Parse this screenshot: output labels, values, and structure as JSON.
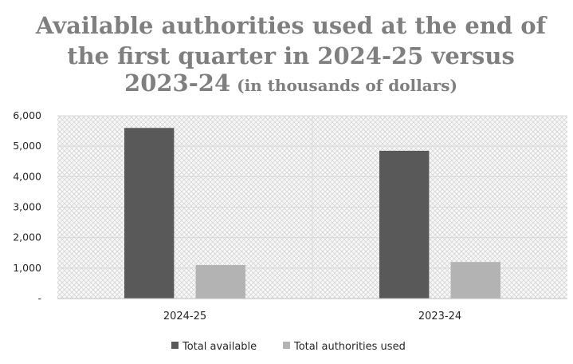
{
  "chart_data": {
    "type": "bar",
    "title_lines": [
      "Available authorities used at the end of",
      "the first quarter in 2024-25 versus",
      "2023-24"
    ],
    "title_suffix": "(in thousands of dollars)",
    "categories": [
      "2024-25",
      "2023-24"
    ],
    "series": [
      {
        "name": "Total available",
        "values": [
          5600,
          4850
        ],
        "color": "#595959"
      },
      {
        "name": "Total authorities used",
        "values": [
          1100,
          1200
        ],
        "color": "#b3b3b3"
      }
    ],
    "y_ticks": [
      {
        "value": 0,
        "label": "-"
      },
      {
        "value": 1000,
        "label": "1,000"
      },
      {
        "value": 2000,
        "label": "2,000"
      },
      {
        "value": 3000,
        "label": "3,000"
      },
      {
        "value": 4000,
        "label": "4,000"
      },
      {
        "value": 5000,
        "label": "5,000"
      },
      {
        "value": 6000,
        "label": "6,000"
      }
    ],
    "ylim": [
      0,
      6000
    ],
    "grid": true,
    "legend_position": "bottom",
    "plot_background": "hatched light gray"
  }
}
